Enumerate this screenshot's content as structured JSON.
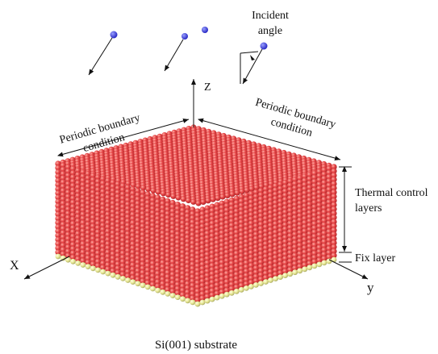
{
  "labels": {
    "incident": [
      "Incident",
      "angle"
    ],
    "pbc_left": [
      "Periodic boundary",
      "condition"
    ],
    "pbc_right": [
      "Periodic boundary",
      "condition"
    ],
    "z": "Z",
    "thermal": [
      "Thermal control",
      "layers"
    ],
    "fix": "Fix layer",
    "x": "X",
    "y": "y",
    "substrate": "Si(001) substrate"
  }
}
